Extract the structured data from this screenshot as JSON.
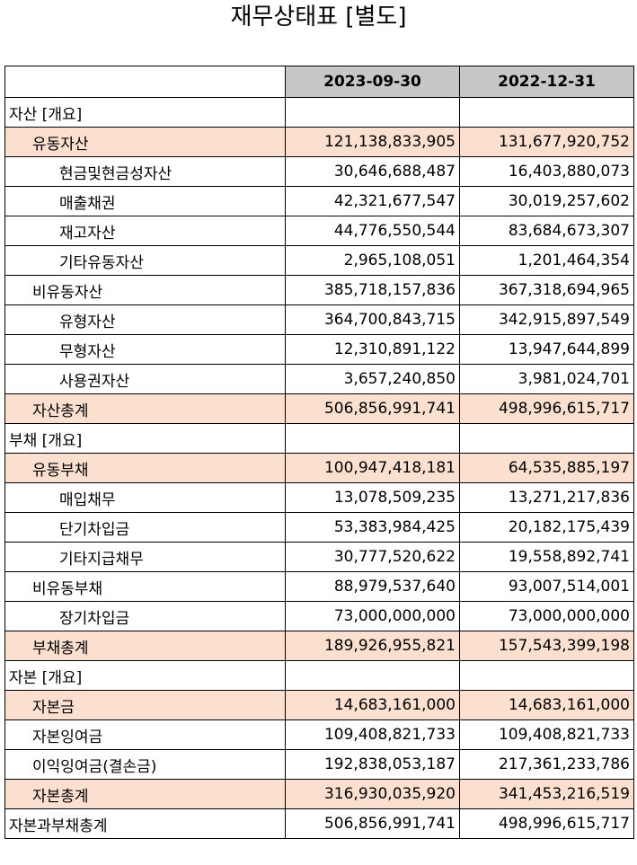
{
  "title": "재무상태표 [별도]",
  "columns": [
    "2023-09-30",
    "2022-12-31"
  ],
  "rows": [
    {
      "label": "자산 [개요]",
      "indent": 0,
      "highlight": false,
      "v1": "",
      "v2": ""
    },
    {
      "label": "유동자산",
      "indent": 1,
      "highlight": true,
      "v1": "121,138,833,905",
      "v2": "131,677,920,752"
    },
    {
      "label": "현금및현금성자산",
      "indent": 2,
      "highlight": false,
      "v1": "30,646,688,487",
      "v2": "16,403,880,073"
    },
    {
      "label": "매출채권",
      "indent": 2,
      "highlight": false,
      "v1": "42,321,677,547",
      "v2": "30,019,257,602"
    },
    {
      "label": "재고자산",
      "indent": 2,
      "highlight": false,
      "v1": "44,776,550,544",
      "v2": "83,684,673,307"
    },
    {
      "label": "기타유동자산",
      "indent": 2,
      "highlight": false,
      "v1": "2,965,108,051",
      "v2": "1,201,464,354"
    },
    {
      "label": "비유동자산",
      "indent": 1,
      "highlight": false,
      "v1": "385,718,157,836",
      "v2": "367,318,694,965"
    },
    {
      "label": "유형자산",
      "indent": 2,
      "highlight": false,
      "v1": "364,700,843,715",
      "v2": "342,915,897,549"
    },
    {
      "label": "무형자산",
      "indent": 2,
      "highlight": false,
      "v1": "12,310,891,122",
      "v2": "13,947,644,899"
    },
    {
      "label": "사용권자산",
      "indent": 2,
      "highlight": false,
      "v1": "3,657,240,850",
      "v2": "3,981,024,701"
    },
    {
      "label": "자산총계",
      "indent": 1,
      "highlight": true,
      "v1": "506,856,991,741",
      "v2": "498,996,615,717"
    },
    {
      "label": "부채 [개요]",
      "indent": 0,
      "highlight": false,
      "v1": "",
      "v2": ""
    },
    {
      "label": "유동부채",
      "indent": 1,
      "highlight": true,
      "v1": "100,947,418,181",
      "v2": "64,535,885,197"
    },
    {
      "label": "매입채무",
      "indent": 2,
      "highlight": false,
      "v1": "13,078,509,235",
      "v2": "13,271,217,836"
    },
    {
      "label": "단기차입금",
      "indent": 2,
      "highlight": false,
      "v1": "53,383,984,425",
      "v2": "20,182,175,439"
    },
    {
      "label": "기타지급채무",
      "indent": 2,
      "highlight": false,
      "v1": "30,777,520,622",
      "v2": "19,558,892,741"
    },
    {
      "label": "비유동부채",
      "indent": 1,
      "highlight": false,
      "v1": "88,979,537,640",
      "v2": "93,007,514,001"
    },
    {
      "label": "장기차입금",
      "indent": 2,
      "highlight": false,
      "v1": "73,000,000,000",
      "v2": "73,000,000,000"
    },
    {
      "label": "부채총계",
      "indent": 1,
      "highlight": true,
      "v1": "189,926,955,821",
      "v2": "157,543,399,198"
    },
    {
      "label": "자본 [개요]",
      "indent": 0,
      "highlight": false,
      "v1": "",
      "v2": ""
    },
    {
      "label": "자본금",
      "indent": 1,
      "highlight": true,
      "v1": "14,683,161,000",
      "v2": "14,683,161,000"
    },
    {
      "label": "자본잉여금",
      "indent": 1,
      "highlight": false,
      "v1": "109,408,821,733",
      "v2": "109,408,821,733"
    },
    {
      "label": "이익잉여금(결손금)",
      "indent": 1,
      "highlight": false,
      "v1": "192,838,053,187",
      "v2": "217,361,233,786"
    },
    {
      "label": "자본총계",
      "indent": 1,
      "highlight": true,
      "v1": "316,930,035,920",
      "v2": "341,453,216,519"
    },
    {
      "label": "자본과부채총계",
      "indent": 0,
      "highlight": false,
      "v1": "506,856,991,741",
      "v2": "498,996,615,717"
    }
  ]
}
